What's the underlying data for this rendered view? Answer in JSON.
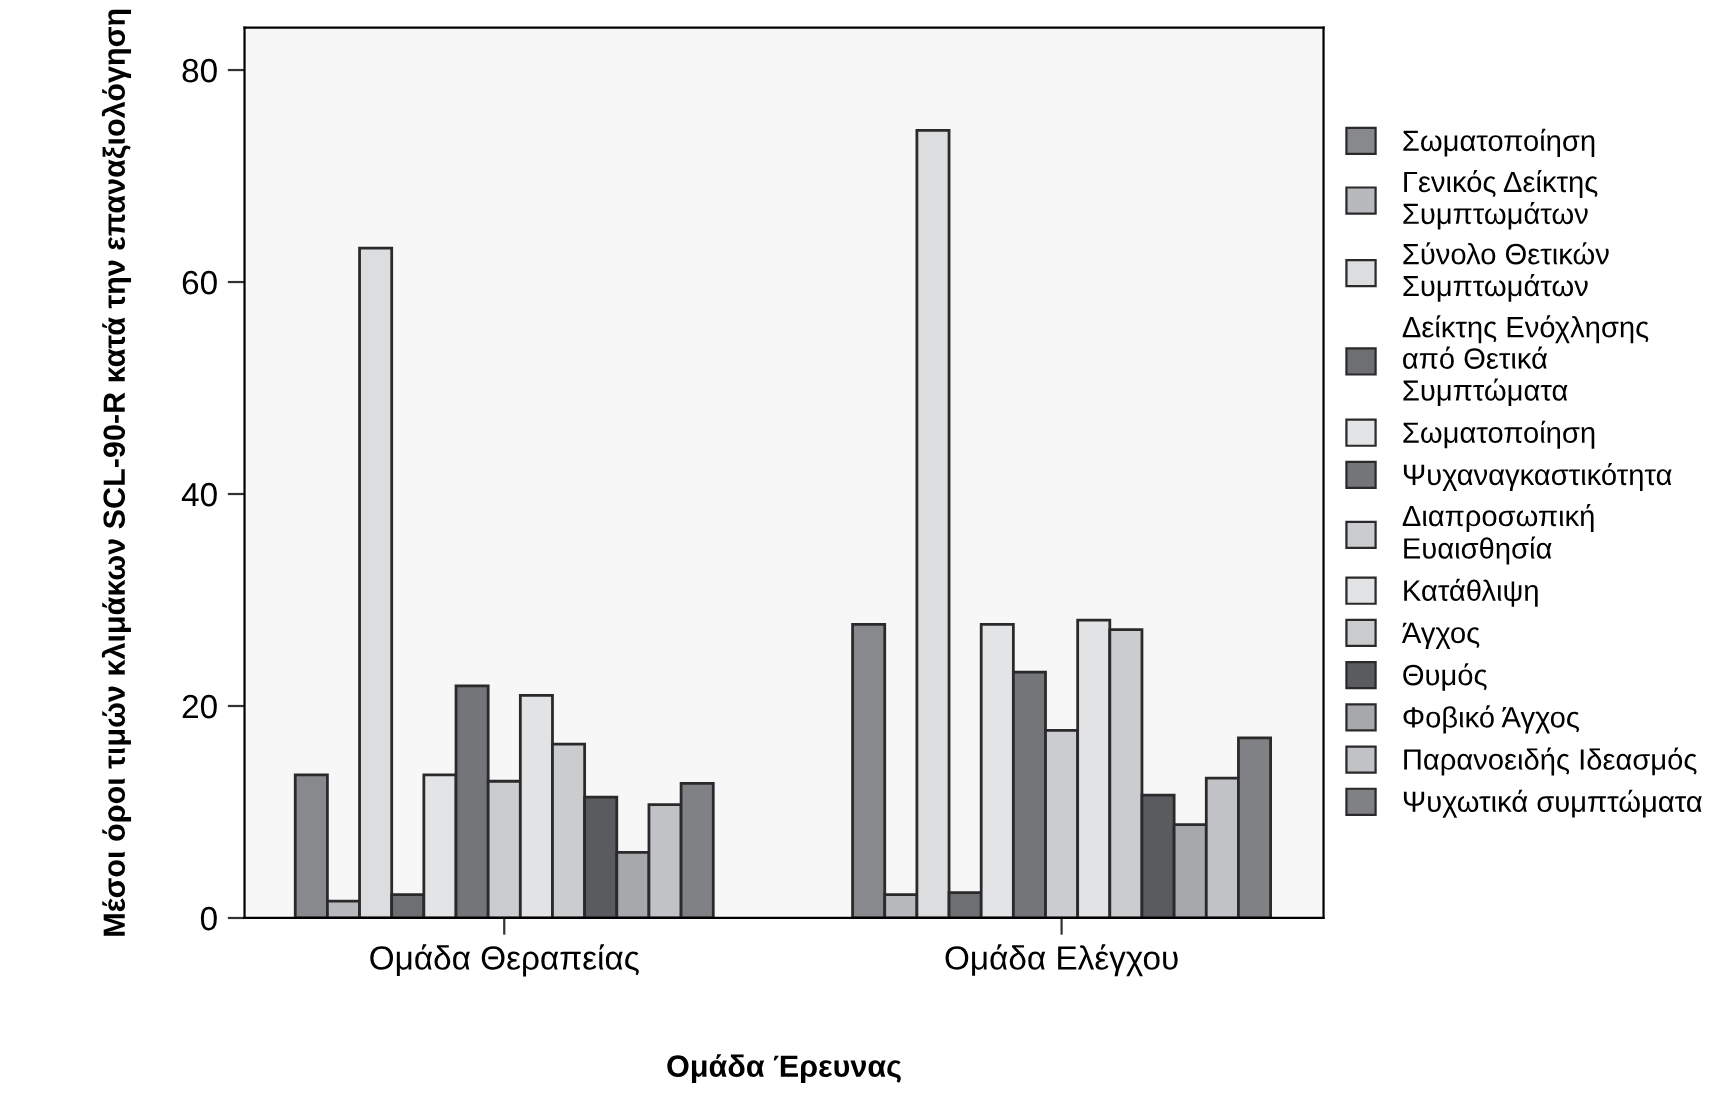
{
  "chart_data": {
    "type": "bar",
    "xlabel": "Ομάδα Έρευνας",
    "ylabel": "Μέσοι όροι τιμών κλιμάκων SCL-90-R κατά την επαναξιολόγηση",
    "categories": [
      "Ομάδα Θεραπείας",
      "Ομάδα Ελέγχου"
    ],
    "series": [
      {
        "name": "Σωματοποίηση",
        "color": "#88898c",
        "values": [
          13.5,
          27.7
        ]
      },
      {
        "name": "Γενικός Δείκτης Συμπτωμάτων",
        "color": "#b8b9bc",
        "values": [
          1.6,
          2.2
        ]
      },
      {
        "name": "Σύνολο Θετικών Συμπτωμάτων",
        "color": "#dcdddf",
        "values": [
          63.2,
          74.3
        ]
      },
      {
        "name": "Δείκτης Ενόχλησης από Θετικά Συμπτώματα",
        "color": "#6e6f72",
        "values": [
          2.2,
          2.4
        ]
      },
      {
        "name": "Σωματοποίηση",
        "color": "#e3e4e6",
        "values": [
          13.5,
          27.7
        ]
      },
      {
        "name": "Ψυχαναγκαστικότητα",
        "color": "#747579",
        "values": [
          21.9,
          23.2
        ]
      },
      {
        "name": "Διαπροσωπική Ευαισθησία",
        "color": "#cbcccf",
        "values": [
          12.9,
          17.7
        ]
      },
      {
        "name": "Κατάθλιψη",
        "color": "#e2e3e5",
        "values": [
          21.0,
          28.1
        ]
      },
      {
        "name": "Άγχος",
        "color": "#cbccce",
        "values": [
          16.4,
          27.2
        ]
      },
      {
        "name": "Θυμός",
        "color": "#5a5b5e",
        "values": [
          11.4,
          11.6
        ]
      },
      {
        "name": "Φοβικό Άγχος",
        "color": "#a7a8ab",
        "values": [
          6.2,
          8.8
        ]
      },
      {
        "name": "Παρανοειδής Ιδεασμός",
        "color": "#c1c2c5",
        "values": [
          10.7,
          13.2
        ]
      },
      {
        "name": "Ψυχωτικά συμπτώματα",
        "color": "#808184",
        "values": [
          12.7,
          17.0
        ]
      }
    ],
    "ylim": [
      0,
      84
    ],
    "yticks": [
      0,
      20,
      40,
      60,
      80
    ],
    "grid": false,
    "legend": "right"
  }
}
